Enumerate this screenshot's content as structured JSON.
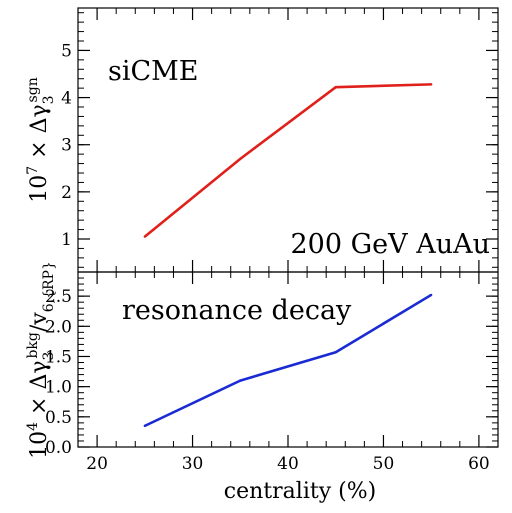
{
  "chart_data": [
    {
      "type": "line",
      "panel": "top",
      "annotations": [
        "siCME",
        "200 GeV AuAu"
      ],
      "ylabel": "10^7 × Δγ_3^sgn",
      "ylim": [
        0.3,
        5.9
      ],
      "yticks": [
        1,
        2,
        3,
        4,
        5
      ],
      "xlim": [
        18,
        62
      ],
      "series": [
        {
          "color": "#e0201b",
          "x": [
            25,
            35,
            45,
            55
          ],
          "y": [
            1.05,
            2.7,
            4.22,
            4.28
          ]
        }
      ]
    },
    {
      "type": "line",
      "panel": "bottom",
      "annotations": [
        "resonance decay"
      ],
      "ylabel": "10^4 × Δγ_3^bkg/v_6,{RP}",
      "ylim": [
        0.0,
        2.9
      ],
      "yticks": [
        0.0,
        0.5,
        1.0,
        1.5,
        2.0,
        2.5
      ],
      "xlabel": "centrality (%)",
      "xlim": [
        18,
        62
      ],
      "xticks": [
        20,
        30,
        40,
        50,
        60
      ],
      "series": [
        {
          "color": "#1a2bd4",
          "x": [
            25,
            35,
            45,
            55
          ],
          "y": [
            0.35,
            1.1,
            1.57,
            2.52
          ]
        }
      ]
    }
  ]
}
